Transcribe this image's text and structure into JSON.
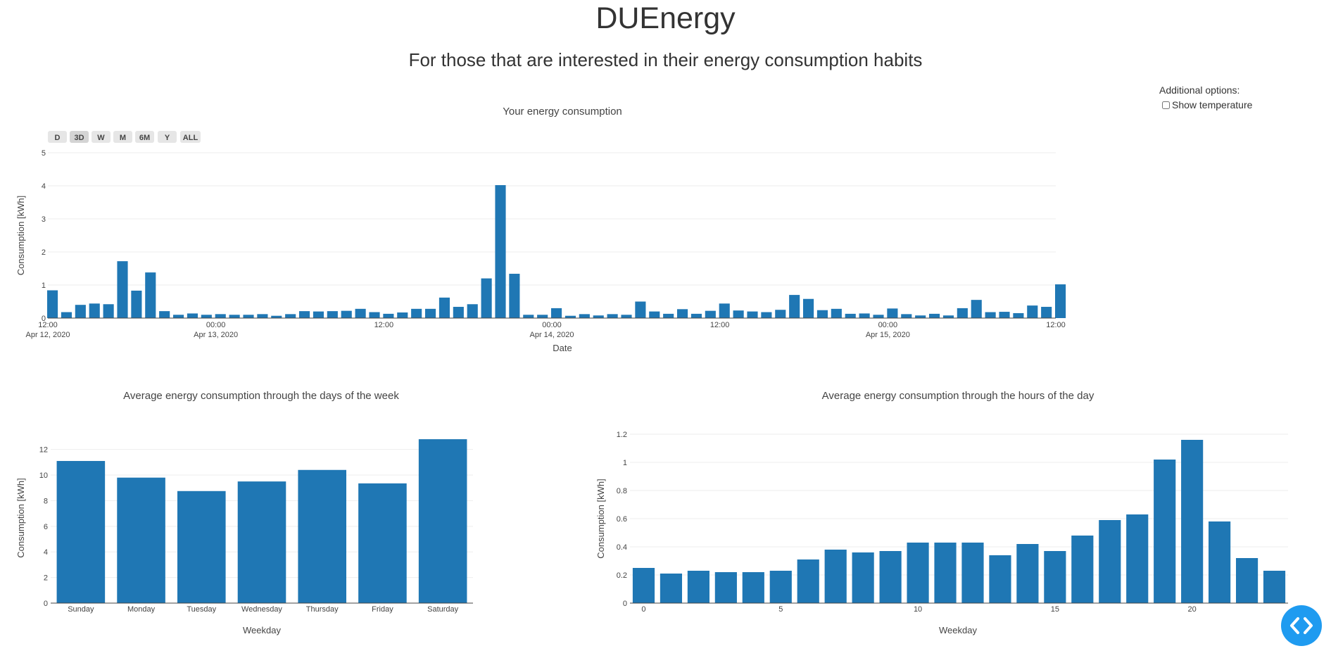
{
  "header": {
    "title": "DUEnergy",
    "subtitle": "For those that are interested in their energy consumption habits"
  },
  "options": {
    "heading": "Additional options:",
    "show_temperature_label": "Show temperature",
    "show_temperature_checked": false
  },
  "range_buttons": [
    "D",
    "3D",
    "W",
    "M",
    "6M",
    "Y",
    "ALL"
  ],
  "range_selected": "3D",
  "colors": {
    "bar": "#1f77b4",
    "grid": "#eeeeee",
    "button": "#e6e6e6",
    "button_active": "#d4d4d4",
    "fab": "#1f9bf0"
  },
  "chart_data": [
    {
      "type": "bar",
      "title": "Your energy consumption",
      "xlabel": "Date",
      "ylabel": "Consumption [kWh]",
      "ylim": [
        0,
        5
      ],
      "yticks": [
        0,
        1,
        2,
        3,
        4,
        5
      ],
      "x_range_hours": [
        0,
        72
      ],
      "x_start": "Apr 12, 2020 12:00",
      "x_end": "Apr 15, 2020 12:00",
      "xticks": [
        {
          "hours": 0,
          "label": "12:00",
          "sub": "Apr 12, 2020"
        },
        {
          "hours": 12,
          "label": "00:00",
          "sub": "Apr 13, 2020"
        },
        {
          "hours": 24,
          "label": "12:00",
          "sub": ""
        },
        {
          "hours": 36,
          "label": "00:00",
          "sub": "Apr 14, 2020"
        },
        {
          "hours": 48,
          "label": "12:00",
          "sub": ""
        },
        {
          "hours": 60,
          "label": "00:00",
          "sub": "Apr 15, 2020"
        },
        {
          "hours": 72,
          "label": "12:00",
          "sub": ""
        }
      ],
      "values": [
        0.84,
        0.18,
        0.4,
        0.44,
        0.42,
        1.72,
        0.83,
        1.38,
        0.21,
        0.1,
        0.14,
        0.1,
        0.12,
        0.1,
        0.1,
        0.12,
        0.07,
        0.12,
        0.21,
        0.2,
        0.21,
        0.22,
        0.28,
        0.18,
        0.13,
        0.17,
        0.28,
        0.28,
        0.62,
        0.34,
        0.42,
        1.2,
        4.02,
        1.34,
        0.1,
        0.1,
        0.3,
        0.07,
        0.12,
        0.08,
        0.12,
        0.1,
        0.5,
        0.2,
        0.13,
        0.27,
        0.13,
        0.22,
        0.44,
        0.23,
        0.2,
        0.18,
        0.25,
        0.7,
        0.58,
        0.24,
        0.28,
        0.13,
        0.14,
        0.1,
        0.29,
        0.12,
        0.08,
        0.13,
        0.08,
        0.3,
        0.55,
        0.18,
        0.19,
        0.15,
        0.38,
        0.34,
        1.02
      ]
    },
    {
      "type": "bar",
      "title": "Average energy consumption through the days of the week",
      "xlabel": "Weekday",
      "ylabel": "Consumption [kWh]",
      "ylim": [
        0,
        13.3
      ],
      "yticks": [
        0,
        2,
        4,
        6,
        8,
        10,
        12
      ],
      "categories": [
        "Sunday",
        "Monday",
        "Tuesday",
        "Wednesday",
        "Thursday",
        "Friday",
        "Saturday"
      ],
      "values": [
        11.1,
        9.8,
        8.75,
        9.5,
        10.4,
        9.35,
        12.8
      ]
    },
    {
      "type": "bar",
      "title": "Average energy consumption through the hours of the day",
      "xlabel": "Weekday",
      "ylabel": "Consumption [kWh]",
      "ylim": [
        0,
        1.2
      ],
      "yticks": [
        0,
        0.2,
        0.4,
        0.6,
        0.8,
        1,
        1.2
      ],
      "ytick_labels": [
        "0",
        "0.2",
        "0.4",
        "0.6",
        "0.8",
        "1",
        "1.2"
      ],
      "xticks": [
        0,
        5,
        10,
        15,
        20
      ],
      "x": [
        0,
        1,
        2,
        3,
        4,
        5,
        6,
        7,
        8,
        9,
        10,
        11,
        12,
        13,
        14,
        15,
        16,
        17,
        18,
        19,
        20,
        21,
        22,
        23
      ],
      "values": [
        0.25,
        0.21,
        0.23,
        0.22,
        0.22,
        0.23,
        0.31,
        0.38,
        0.36,
        0.37,
        0.43,
        0.43,
        0.43,
        0.34,
        0.42,
        0.37,
        0.48,
        0.59,
        0.63,
        1.02,
        1.16,
        0.58,
        0.32,
        0.23
      ]
    }
  ]
}
